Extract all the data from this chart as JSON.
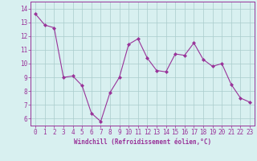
{
  "x": [
    0,
    1,
    2,
    3,
    4,
    5,
    6,
    7,
    8,
    9,
    10,
    11,
    12,
    13,
    14,
    15,
    16,
    17,
    18,
    19,
    20,
    21,
    22,
    23
  ],
  "y": [
    13.6,
    12.8,
    12.6,
    9.0,
    9.1,
    8.4,
    6.4,
    5.8,
    7.9,
    9.0,
    11.4,
    11.8,
    10.4,
    9.5,
    9.4,
    10.7,
    10.6,
    11.5,
    10.3,
    9.8,
    10.0,
    8.5,
    7.5,
    7.2
  ],
  "line_color": "#993399",
  "marker": "D",
  "marker_size": 2.0,
  "bg_color": "#d8f0f0",
  "grid_color": "#aacccc",
  "xlabel": "Windchill (Refroidissement éolien,°C)",
  "xlabel_color": "#993399",
  "tick_color": "#993399",
  "spine_color": "#993399",
  "ylim": [
    5.5,
    14.5
  ],
  "yticks": [
    6,
    7,
    8,
    9,
    10,
    11,
    12,
    13,
    14
  ],
  "xlim": [
    -0.5,
    23.5
  ],
  "xticks": [
    0,
    1,
    2,
    3,
    4,
    5,
    6,
    7,
    8,
    9,
    10,
    11,
    12,
    13,
    14,
    15,
    16,
    17,
    18,
    19,
    20,
    21,
    22,
    23
  ]
}
